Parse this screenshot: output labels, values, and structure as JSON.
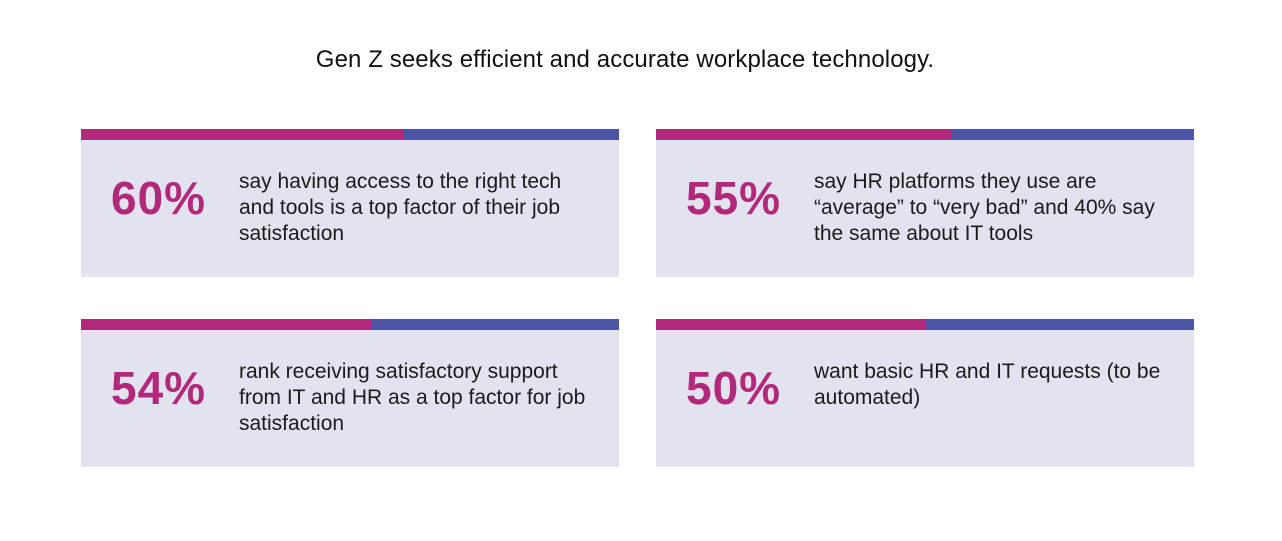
{
  "title": "Gen Z seeks efficient and accurate workplace technology.",
  "colors": {
    "accent_magenta": "#b2297b",
    "accent_blue": "#4c56a4",
    "card_background": "#e3e2ef"
  },
  "stats": [
    {
      "value": "60%",
      "text": "say having access to the right tech and tools is a top factor of their job satisfaction",
      "progress": 0.6
    },
    {
      "value": "55%",
      "text": "say HR platforms they use are “average” to “very bad” and 40% say the same about IT tools",
      "progress": 0.55
    },
    {
      "value": "54%",
      "text": "rank receiving satisfactory support from IT and HR as a top factor for job satisfaction",
      "progress": 0.54
    },
    {
      "value": "50%",
      "text": "want basic HR and IT requests (to be automated)",
      "progress": 0.5
    }
  ]
}
